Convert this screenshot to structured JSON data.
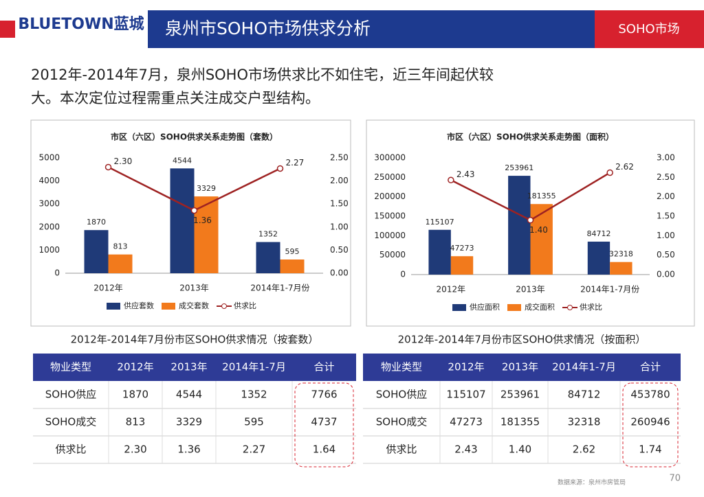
{
  "header": {
    "logo": "BLUETOWN蓝城",
    "title": "泉州市SOHO市场供求分析",
    "tag": "SOHO市场"
  },
  "summary": "2012年-2014年7月，泉州SOHO市场供求比不如住宅，近三年间起伏较大。本次定位过程需重点关注成交户型结构。",
  "chart_data": [
    {
      "type": "bar",
      "title": "市区（六区）SOHO供求关系走势图（套数）",
      "categories": [
        "2012年",
        "2013年",
        "2014年1-7月份"
      ],
      "series": [
        {
          "name": "供应套数",
          "color": "#1f3a78",
          "values": [
            1870,
            4544,
            1352
          ]
        },
        {
          "name": "成交套数",
          "color": "#f27a1c",
          "values": [
            813,
            3329,
            595
          ]
        },
        {
          "name": "供求比",
          "color": "#9e2222",
          "type": "line",
          "axis": "y2",
          "values": [
            2.3,
            1.36,
            2.27
          ],
          "value_labels": [
            "2.30",
            "1.36",
            "2.27"
          ]
        }
      ],
      "ylim": [
        0,
        5000
      ],
      "yticks": [
        0,
        1000,
        2000,
        3000,
        4000,
        5000
      ],
      "y2lim": [
        0,
        2.5
      ],
      "y2ticks": [
        {
          "value": 0,
          "label": "0.00"
        },
        {
          "value": 0.5,
          "label": "0.50"
        },
        {
          "value": 1,
          "label": "1.00"
        },
        {
          "value": 1.5,
          "label": "1.50"
        },
        {
          "value": 2,
          "label": "2.00"
        },
        {
          "value": 2.5,
          "label": "2.50"
        }
      ]
    },
    {
      "type": "bar",
      "title": "市区（六区）SOHO供求关系走势图（面积）",
      "categories": [
        "2012年",
        "2013年",
        "2014年1-7月份"
      ],
      "series": [
        {
          "name": "供应面积",
          "color": "#1f3a78",
          "values": [
            115107,
            253961,
            84712
          ]
        },
        {
          "name": "成交面积",
          "color": "#f27a1c",
          "values": [
            47273,
            181355,
            32318
          ]
        },
        {
          "name": "供求比",
          "color": "#9e2222",
          "type": "line",
          "axis": "y2",
          "values": [
            2.43,
            1.4,
            2.62
          ],
          "value_labels": [
            "2.43",
            "1.40",
            "2.62"
          ]
        }
      ],
      "ylim": [
        0,
        300000
      ],
      "yticks": [
        0,
        50000,
        100000,
        150000,
        200000,
        250000,
        300000
      ],
      "y2lim": [
        0,
        3
      ],
      "y2ticks": [
        {
          "value": 0,
          "label": "0.00"
        },
        {
          "value": 0.5,
          "label": "0.50"
        },
        {
          "value": 1,
          "label": "1.00"
        },
        {
          "value": 1.5,
          "label": "1.50"
        },
        {
          "value": 2,
          "label": "2.00"
        },
        {
          "value": 2.5,
          "label": "2.50"
        },
        {
          "value": 3,
          "label": "3.00"
        }
      ]
    }
  ],
  "tables": [
    {
      "title": "2012年-2014年7月份市区SOHO供求情况（按套数）",
      "header": [
        "物业类型",
        "2012年",
        "2013年",
        "2014年1-7月",
        "合计"
      ],
      "rows": [
        [
          "SOHO供应",
          "1870",
          "4544",
          "1352",
          "7766"
        ],
        [
          "SOHO成交",
          "813",
          "3329",
          "595",
          "4737"
        ],
        [
          "供求比",
          "2.30",
          "1.36",
          "2.27",
          "1.64"
        ]
      ]
    },
    {
      "title": "2012年-2014年7月份市区SOHO供求情况（按面积）",
      "header": [
        "物业类型",
        "2012年",
        "2013年",
        "2014年1-7月",
        "合计"
      ],
      "rows": [
        [
          "SOHO供应",
          "115107",
          "253961",
          "84712",
          "453780"
        ],
        [
          "SOHO成交",
          "47273",
          "181355",
          "32318",
          "260946"
        ],
        [
          "供求比",
          "2.43",
          "1.40",
          "2.62",
          "1.74"
        ]
      ]
    }
  ],
  "footer": {
    "source": "数据来源：泉州市房管局",
    "page": "70"
  }
}
